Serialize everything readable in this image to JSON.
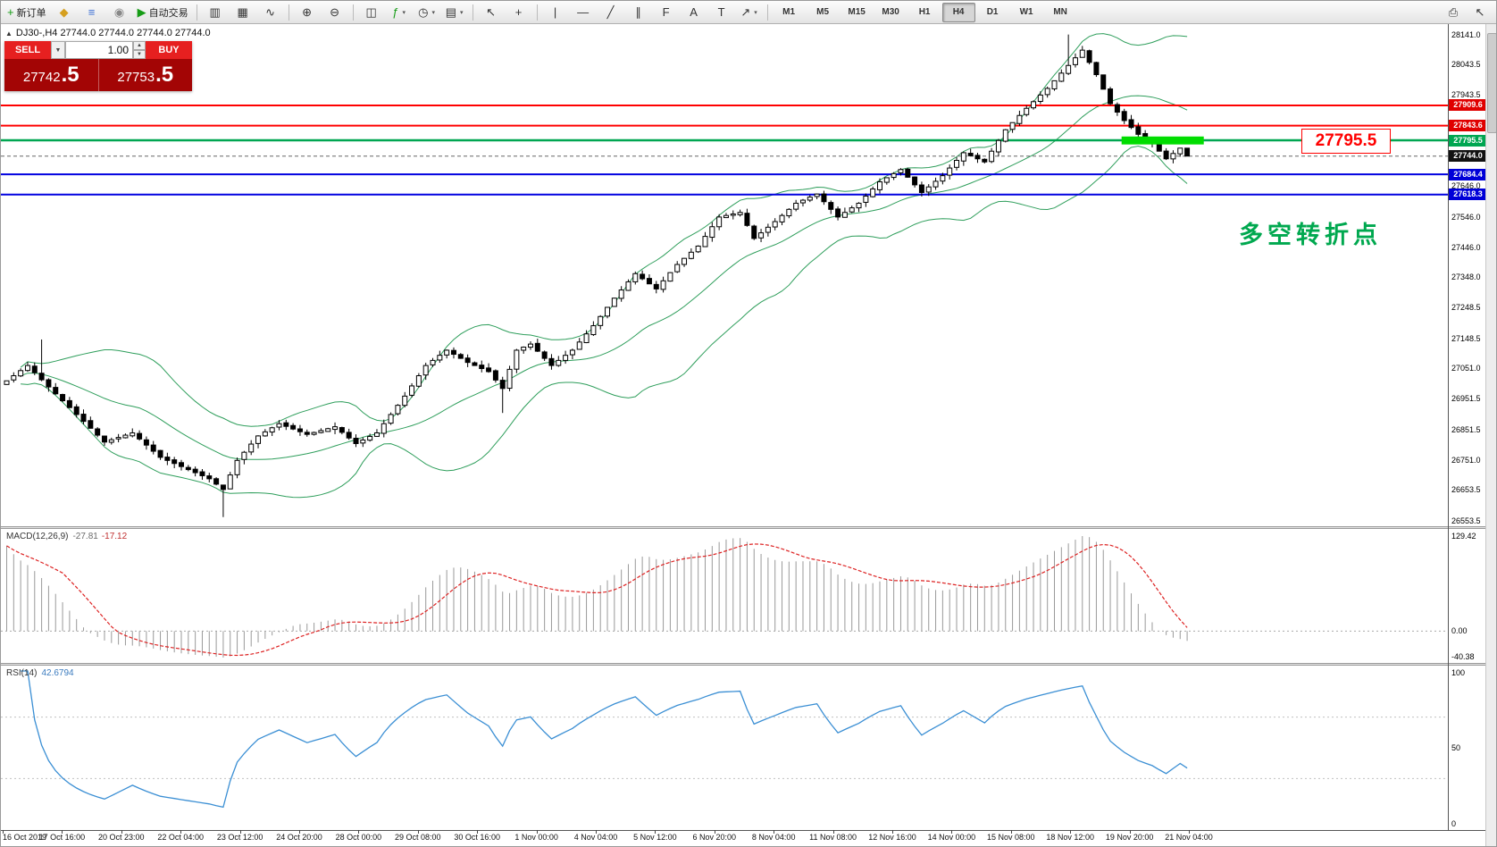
{
  "toolbar": {
    "groups": [
      {
        "items": [
          {
            "name": "new-order-button",
            "glyph": "+",
            "glyph_color": "#169c16",
            "label": "新订单"
          },
          {
            "name": "charts-button",
            "glyph": "◆",
            "glyph_color": "#d59f1f"
          },
          {
            "name": "market-watch-button",
            "glyph": "≡",
            "glyph_color": "#3b6fd4"
          },
          {
            "name": "navigator-button",
            "glyph": "◉",
            "glyph_color": "#888888"
          },
          {
            "name": "autotrading-button",
            "glyph": "▶",
            "glyph_color": "#169c16",
            "label": "自动交易"
          }
        ]
      },
      {
        "items": [
          {
            "name": "bar-chart-button",
            "glyph": "▥"
          },
          {
            "name": "candlestick-button",
            "glyph": "▦"
          },
          {
            "name": "line-chart-button",
            "glyph": "∿"
          }
        ]
      },
      {
        "items": [
          {
            "name": "zoom-in-button",
            "glyph": "⊕"
          },
          {
            "name": "zoom-out-button",
            "glyph": "⊖"
          }
        ]
      },
      {
        "items": [
          {
            "name": "tile-windows-button",
            "glyph": "◫"
          },
          {
            "name": "indicators-button",
            "glyph": "ƒ",
            "glyph_color": "#169c16",
            "dropdown": true
          },
          {
            "name": "periods-button",
            "glyph": "◷",
            "dropdown": true
          },
          {
            "name": "templates-button",
            "glyph": "▤",
            "dropdown": true
          }
        ]
      },
      {
        "items": [
          {
            "name": "cursor-button",
            "glyph": "↖"
          },
          {
            "name": "crosshair-button",
            "glyph": "+"
          }
        ]
      },
      {
        "items": [
          {
            "name": "vertical-line-button",
            "glyph": "|"
          },
          {
            "name": "horizontal-line-button",
            "glyph": "—"
          },
          {
            "name": "trendline-button",
            "glyph": "╱"
          },
          {
            "name": "channel-button",
            "glyph": "∥"
          },
          {
            "name": "fibonacci-button",
            "glyph": "F"
          },
          {
            "name": "text-button",
            "glyph": "A"
          },
          {
            "name": "label-button",
            "glyph": "T"
          },
          {
            "name": "arrows-button",
            "glyph": "↗",
            "dropdown": true
          }
        ]
      }
    ],
    "timeframes": {
      "options": [
        "M1",
        "M5",
        "M15",
        "M30",
        "H1",
        "H4",
        "D1",
        "W1",
        "MN"
      ],
      "active": "H4"
    },
    "right_items": [
      {
        "name": "print-button",
        "glyph": "⎙"
      },
      {
        "name": "pointer-button",
        "glyph": "↖"
      }
    ]
  },
  "chart": {
    "quote_line": "DJ30-,H4 27744.0 27744.0 27744.0 27744.0",
    "trade_panel": {
      "sell_label": "SELL",
      "buy_label": "BUY",
      "volume": "1.00",
      "sell_main": "27742",
      "sell_frac": ".5",
      "buy_main": "27753",
      "buy_frac": ".5"
    },
    "annotations": {
      "price_callout": "27795.5",
      "turning_point": "多空转折点",
      "turning_point_color": "#00a84f"
    },
    "price_axis": [
      {
        "text": "28141.0",
        "price": 28141.0,
        "style": "normal"
      },
      {
        "text": "28043.5",
        "price": 28043.5,
        "style": "normal"
      },
      {
        "text": "27943.5",
        "price": 27943.5,
        "style": "normal"
      },
      {
        "text": "27909.6",
        "price": 27909.6,
        "style": "red"
      },
      {
        "text": "27843.6",
        "price": 27843.6,
        "style": "red"
      },
      {
        "text": "27795.5",
        "price": 27795.5,
        "style": "green"
      },
      {
        "text": "27744.0",
        "price": 27744.0,
        "style": "current"
      },
      {
        "text": "27684.4",
        "price": 27684.4,
        "style": "blue"
      },
      {
        "text": "27646.0",
        "price": 27646.0,
        "style": "normal"
      },
      {
        "text": "27618.3",
        "price": 27618.3,
        "style": "blue"
      },
      {
        "text": "27546.0",
        "price": 27546.0,
        "style": "normal"
      },
      {
        "text": "27446.0",
        "price": 27446.0,
        "style": "normal"
      },
      {
        "text": "27348.0",
        "price": 27348.0,
        "style": "normal"
      },
      {
        "text": "27248.5",
        "price": 27248.5,
        "style": "normal"
      },
      {
        "text": "27148.5",
        "price": 27148.5,
        "style": "normal"
      },
      {
        "text": "27051.0",
        "price": 27051.0,
        "style": "normal"
      },
      {
        "text": "26951.5",
        "price": 26951.5,
        "style": "normal"
      },
      {
        "text": "26851.5",
        "price": 26851.5,
        "style": "normal"
      },
      {
        "text": "26751.0",
        "price": 26751.0,
        "style": "normal"
      },
      {
        "text": "26653.5",
        "price": 26653.5,
        "style": "normal"
      },
      {
        "text": "26553.5",
        "price": 26553.5,
        "style": "normal"
      }
    ]
  },
  "indicators": {
    "macd": {
      "name": "MACD(12,26,9)",
      "v1": "-27.81",
      "v2": "-17.12",
      "axis": [
        "129.42",
        "0.00",
        "-40.38"
      ]
    },
    "rsi": {
      "name": "RSI(14)",
      "value": "42.6794",
      "axis": [
        "100",
        "50",
        "0"
      ]
    }
  },
  "time_axis": [
    "16 Oct 2019",
    "17 Oct 16:00",
    "20 Oct 23:00",
    "22 Oct 04:00",
    "23 Oct 12:00",
    "24 Oct 20:00",
    "28 Oct 00:00",
    "29 Oct 08:00",
    "30 Oct 16:00",
    "1 Nov 00:00",
    "4 Nov 04:00",
    "5 Nov 12:00",
    "6 Nov 20:00",
    "8 Nov 04:00",
    "11 Nov 08:00",
    "12 Nov 16:00",
    "14 Nov 00:00",
    "15 Nov 08:00",
    "18 Nov 12:00",
    "19 Nov 20:00",
    "21 Nov 04:00"
  ],
  "colors": {
    "tag_red": "#e00000",
    "tag_green": "#00a651",
    "tag_blue": "#0000d8",
    "tag_current": "#111111",
    "line_red": "#ff0000",
    "line_green": "#00a651",
    "line_blue": "#0000e0",
    "bollinger": "#2e9e5b",
    "highlight": "#00dd00",
    "candle_up": "#ffffff",
    "candle_down": "#000000",
    "candle_border": "#000000",
    "macd_hist": "#9a9a9a",
    "macd_signal": "#dd2222",
    "rsi_line": "#3b8fd4"
  },
  "chart_data": {
    "type": "candlestick",
    "symbol": "DJ30-",
    "timeframe": "H4",
    "last_price": 27744.0,
    "ylim": [
      26553.5,
      28141.0
    ],
    "candle_count": 170,
    "close_anchors": [
      [
        0,
        27010
      ],
      [
        3,
        27060
      ],
      [
        6,
        26990
      ],
      [
        10,
        26900
      ],
      [
        14,
        26810
      ],
      [
        18,
        26840
      ],
      [
        22,
        26760
      ],
      [
        26,
        26720
      ],
      [
        29,
        26690
      ],
      [
        31,
        26655
      ],
      [
        33,
        26750
      ],
      [
        36,
        26830
      ],
      [
        39,
        26870
      ],
      [
        43,
        26835
      ],
      [
        47,
        26860
      ],
      [
        50,
        26805
      ],
      [
        53,
        26840
      ],
      [
        57,
        26960
      ],
      [
        60,
        27060
      ],
      [
        63,
        27110
      ],
      [
        66,
        27070
      ],
      [
        69,
        27040
      ],
      [
        71,
        26985
      ],
      [
        73,
        27110
      ],
      [
        75,
        27130
      ],
      [
        78,
        27060
      ],
      [
        81,
        27110
      ],
      [
        84,
        27190
      ],
      [
        87,
        27280
      ],
      [
        90,
        27360
      ],
      [
        93,
        27310
      ],
      [
        96,
        27390
      ],
      [
        99,
        27450
      ],
      [
        102,
        27545
      ],
      [
        105,
        27560
      ],
      [
        107,
        27475
      ],
      [
        110,
        27530
      ],
      [
        113,
        27590
      ],
      [
        116,
        27620
      ],
      [
        119,
        27545
      ],
      [
        122,
        27590
      ],
      [
        125,
        27660
      ],
      [
        128,
        27700
      ],
      [
        131,
        27625
      ],
      [
        134,
        27680
      ],
      [
        137,
        27755
      ],
      [
        140,
        27725
      ],
      [
        143,
        27830
      ],
      [
        146,
        27900
      ],
      [
        149,
        27965
      ],
      [
        152,
        28040
      ],
      [
        154,
        28090
      ],
      [
        156,
        28010
      ],
      [
        158,
        27915
      ],
      [
        160,
        27860
      ],
      [
        162,
        27815
      ],
      [
        164,
        27785
      ],
      [
        166,
        27735
      ],
      [
        168,
        27770
      ],
      [
        169,
        27744
      ]
    ],
    "wick_extremes": [
      {
        "i": 5,
        "high": 27145
      },
      {
        "i": 31,
        "low": 26565
      },
      {
        "i": 71,
        "low": 26905
      },
      {
        "i": 152,
        "high": 28141
      }
    ],
    "bollinger": {
      "period": 20,
      "deviation": 2
    },
    "hlines": [
      {
        "price": 27909.6,
        "color": "#ff0000",
        "width": 2
      },
      {
        "price": 27843.6,
        "color": "#ff0000",
        "width": 2
      },
      {
        "price": 27795.5,
        "color": "#00a651",
        "width": 2.5
      },
      {
        "price": 27684.4,
        "color": "#0000e0",
        "width": 2
      },
      {
        "price": 27618.3,
        "color": "#0000e0",
        "width": 2
      }
    ],
    "current_price_line": {
      "price": 27744.0,
      "color": "#666666"
    },
    "highlight_zone": {
      "from_candle": 160,
      "to_candle": 171,
      "price_top": 27808,
      "price_bottom": 27782
    },
    "macd": {
      "fast": 12,
      "slow": 26,
      "signal": 9,
      "axis_max": 129.42,
      "axis_min": -40.38,
      "last_main": -27.81,
      "last_signal": -17.12
    },
    "rsi": {
      "period": 14,
      "last": 42.6794,
      "levels": [
        70,
        30
      ]
    }
  }
}
